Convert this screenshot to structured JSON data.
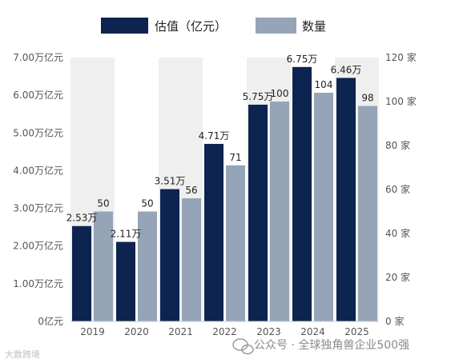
{
  "chart_data": {
    "type": "bar",
    "categories": [
      "2019",
      "2020",
      "2021",
      "2022",
      "2023",
      "2024",
      "2025"
    ],
    "series": [
      {
        "name": "估值（亿元）",
        "axis": "left",
        "values": [
          2.53,
          2.11,
          3.51,
          4.71,
          5.75,
          6.75,
          6.46
        ],
        "labels": [
          "2.53万",
          "2.11万",
          "3.51万",
          "4.71万",
          "5.75万",
          "6.75万",
          "6.46万"
        ],
        "color": "#0d2450"
      },
      {
        "name": "数量",
        "axis": "right",
        "values": [
          50,
          50,
          56,
          71,
          100,
          104,
          98
        ],
        "labels": [
          "50",
          "50",
          "56",
          "71",
          "100",
          "104",
          "98"
        ],
        "color": "#95a5b7"
      }
    ],
    "left_axis": {
      "ylim": [
        0,
        7
      ],
      "tick_labels": [
        "0亿元",
        "1.00万亿元",
        "2.00万亿元",
        "3.00万亿元",
        "4.00万亿元",
        "5.00万亿元",
        "6.00万亿元",
        "7.00万亿元"
      ]
    },
    "right_axis": {
      "ylim": [
        0,
        120
      ],
      "tick_labels": [
        "0 家",
        "20 家",
        "40 家",
        "60 家",
        "80 家",
        "100 家",
        "120 家"
      ]
    },
    "legend_position": "top-center",
    "band_color": "#efefef"
  },
  "watermark_left": "大数跨境",
  "credit": "公众号 · 全球独角兽企业500强"
}
